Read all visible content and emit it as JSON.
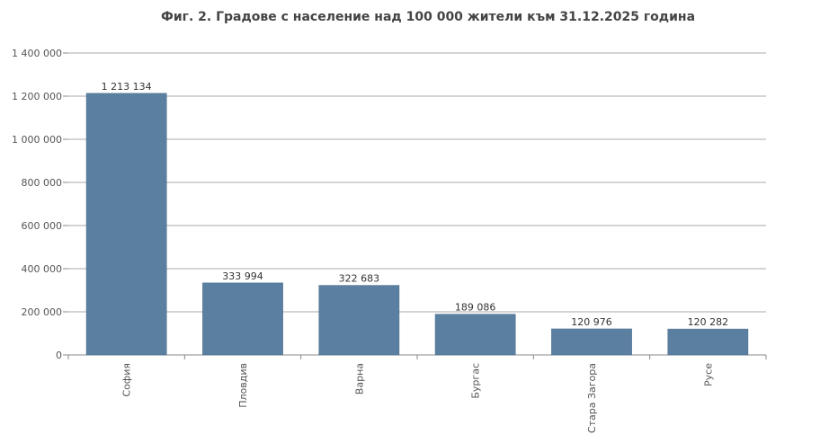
{
  "chart_data": {
    "type": "bar",
    "title": "Фиг. 2. Градове с население над 100 000 жители към 31.12.2025 година",
    "xlabel": "",
    "ylabel": "",
    "categories": [
      "София",
      "Пловдив",
      "Варна",
      "Бургас",
      "Стара Загора",
      "Русе"
    ],
    "values": [
      1213134,
      333994,
      322683,
      189086,
      120976,
      120282
    ],
    "value_labels": [
      "1 213 134",
      "333 994",
      "322 683",
      "189 086",
      "120 976",
      "120 282"
    ],
    "ylim": [
      0,
      1400000
    ],
    "yticks": [
      0,
      200000,
      400000,
      600000,
      800000,
      1000000,
      1200000,
      1400000
    ],
    "ytick_labels": [
      "0",
      "200 000",
      "400 000",
      "600 000",
      "800 000",
      "1 000 000",
      "1 200 000",
      "1 400 000"
    ],
    "grid": true,
    "legend": "none",
    "bar_color": "#5a7fa0"
  }
}
